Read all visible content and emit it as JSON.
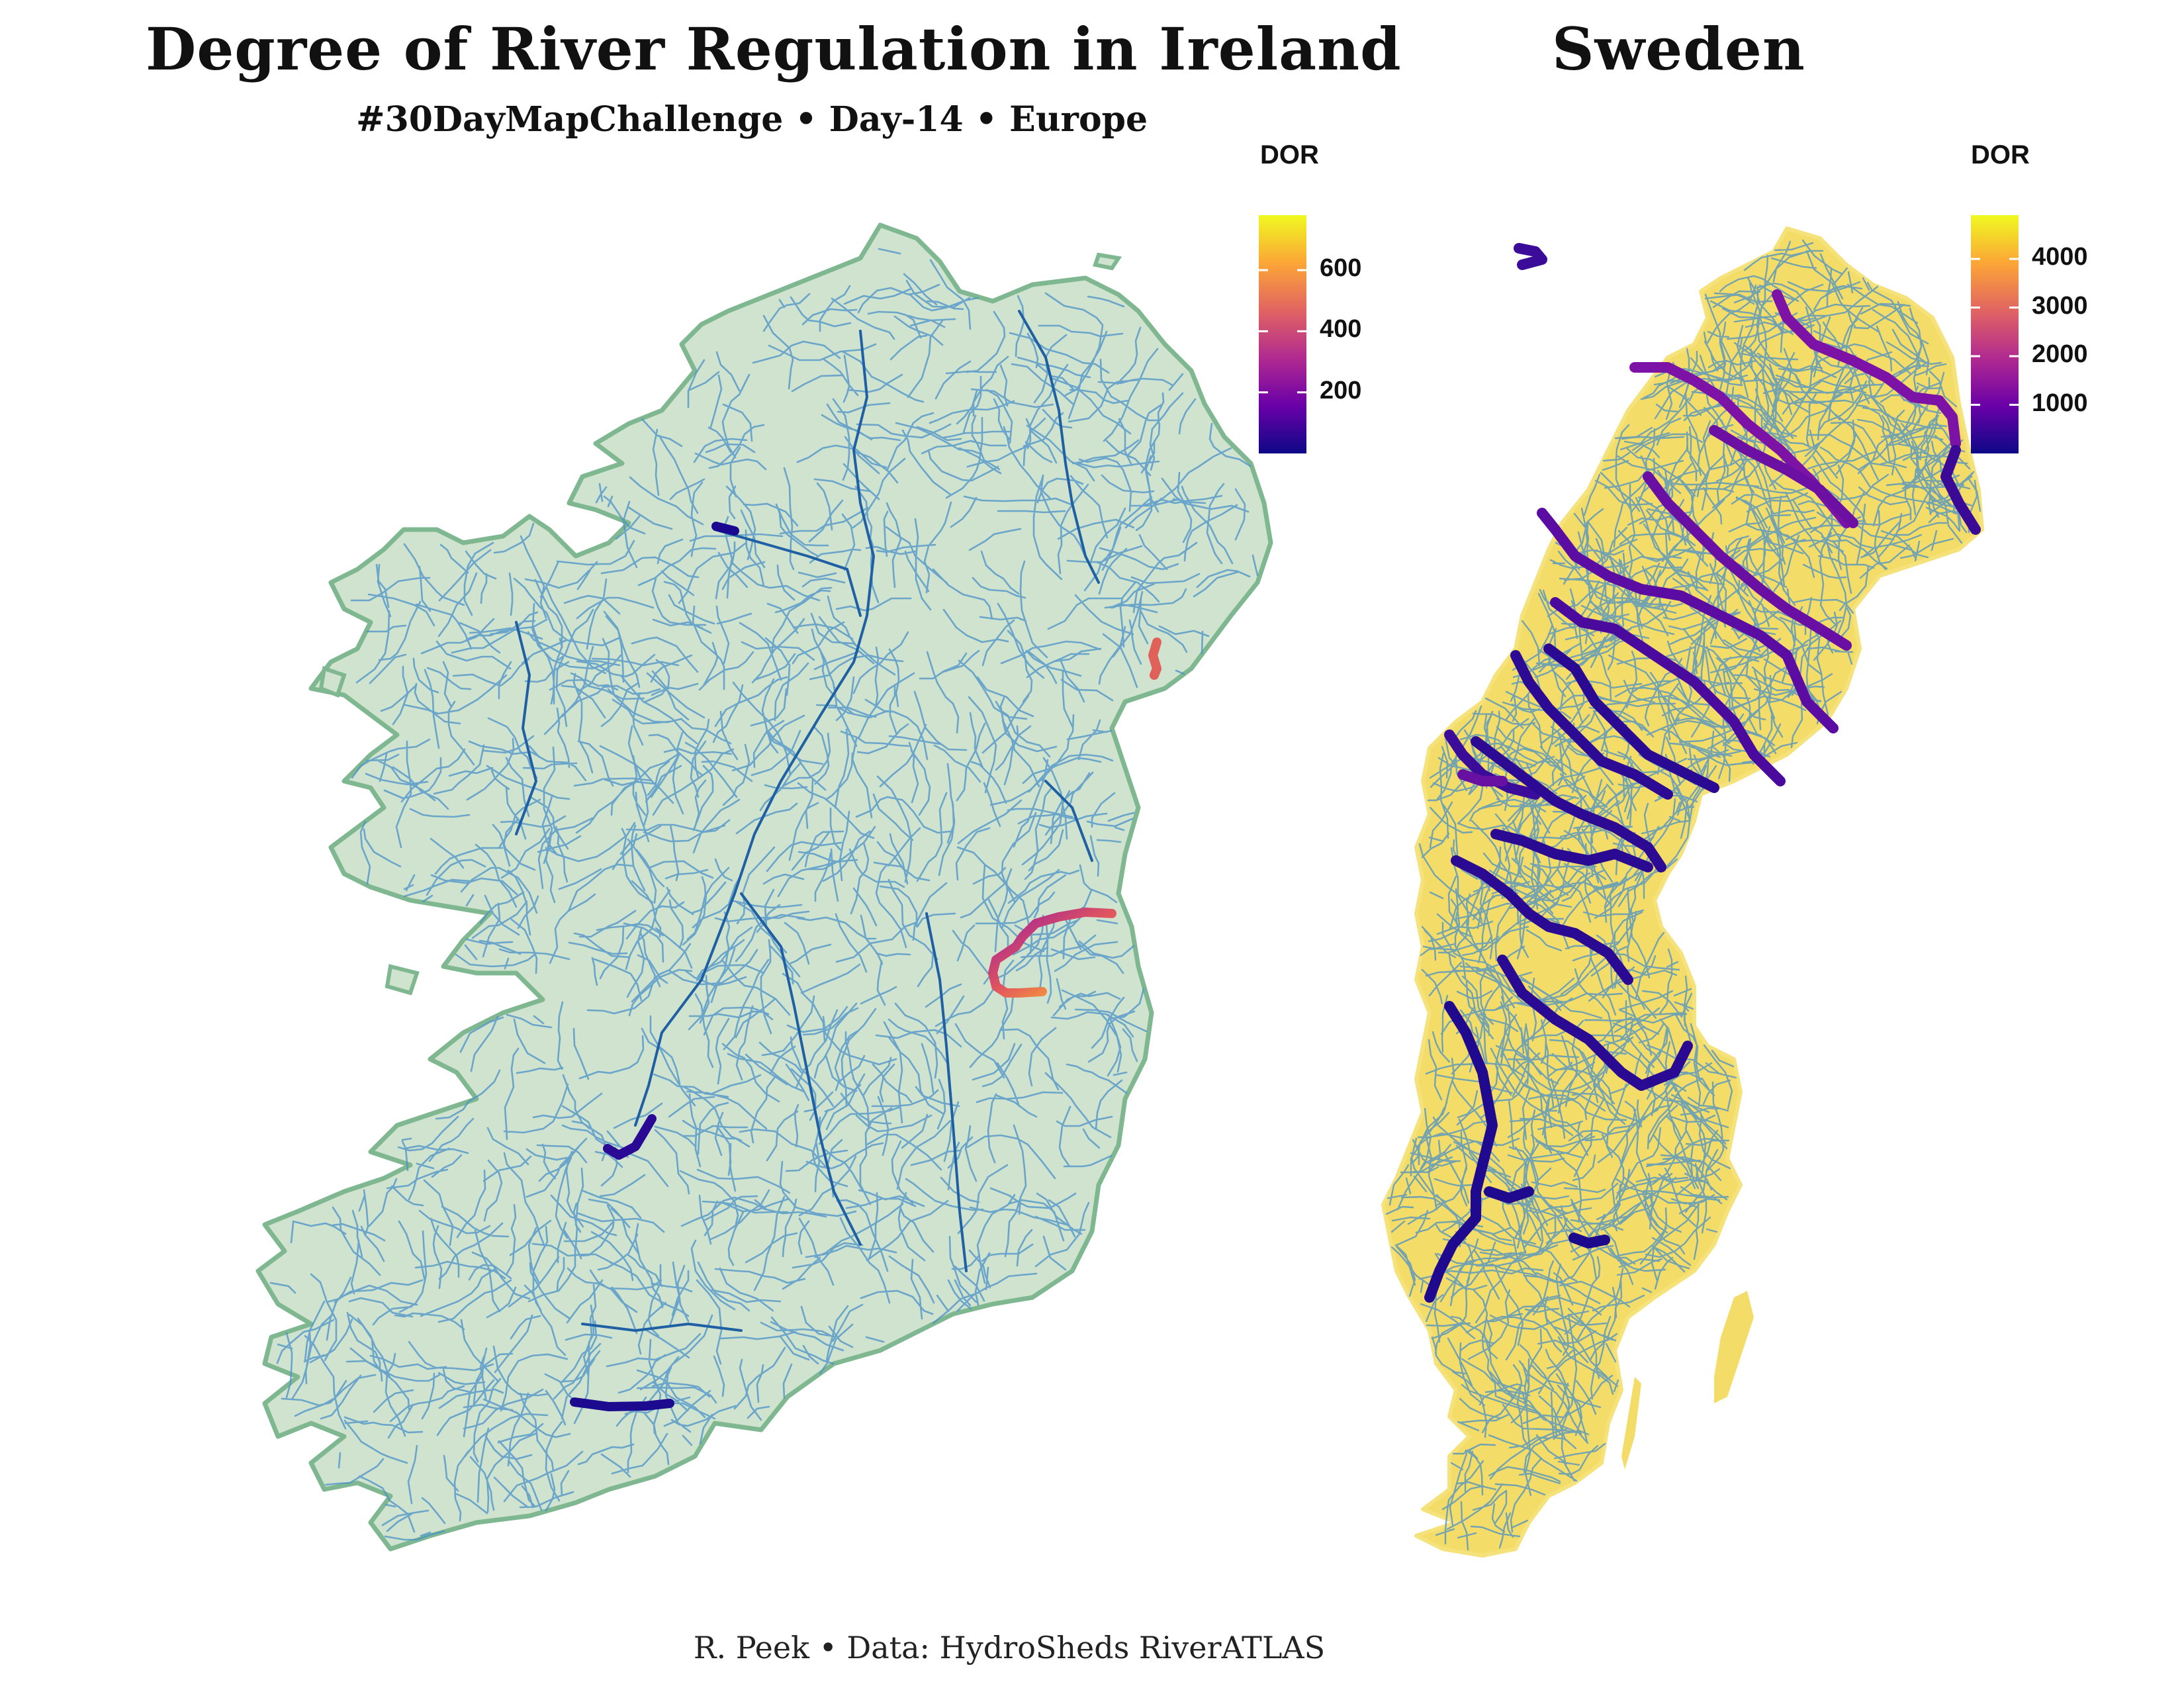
{
  "header": {
    "title_ireland": "Degree of River Regulation in Ireland",
    "title_sweden": "Sweden",
    "subtitle": "#30DayMapChallenge • Day-14 • Europe"
  },
  "caption": "R. Peek • Data: HydroSheds RiverATLAS",
  "colors": {
    "ireland_land": "#cfe3cf",
    "ireland_outline": "#7fb890",
    "river": "#4a90c8",
    "river_dark": "#1f5fa3",
    "sweden_land": "#f4dc68",
    "palette": [
      "#0d0887",
      "#6a00a8",
      "#b12a90",
      "#e16462",
      "#fca636",
      "#f0f921"
    ]
  },
  "legend_ireland": {
    "title": "DOR",
    "ticks": [
      "600",
      "400",
      "200"
    ],
    "tick_values": [
      600,
      400,
      200
    ],
    "range": [
      0,
      780
    ]
  },
  "legend_sweden": {
    "title": "DOR",
    "ticks": [
      "4000",
      "3000",
      "2000",
      "1000"
    ],
    "tick_values": [
      4000,
      3000,
      2000,
      1000
    ],
    "range": [
      0,
      4900
    ]
  }
}
